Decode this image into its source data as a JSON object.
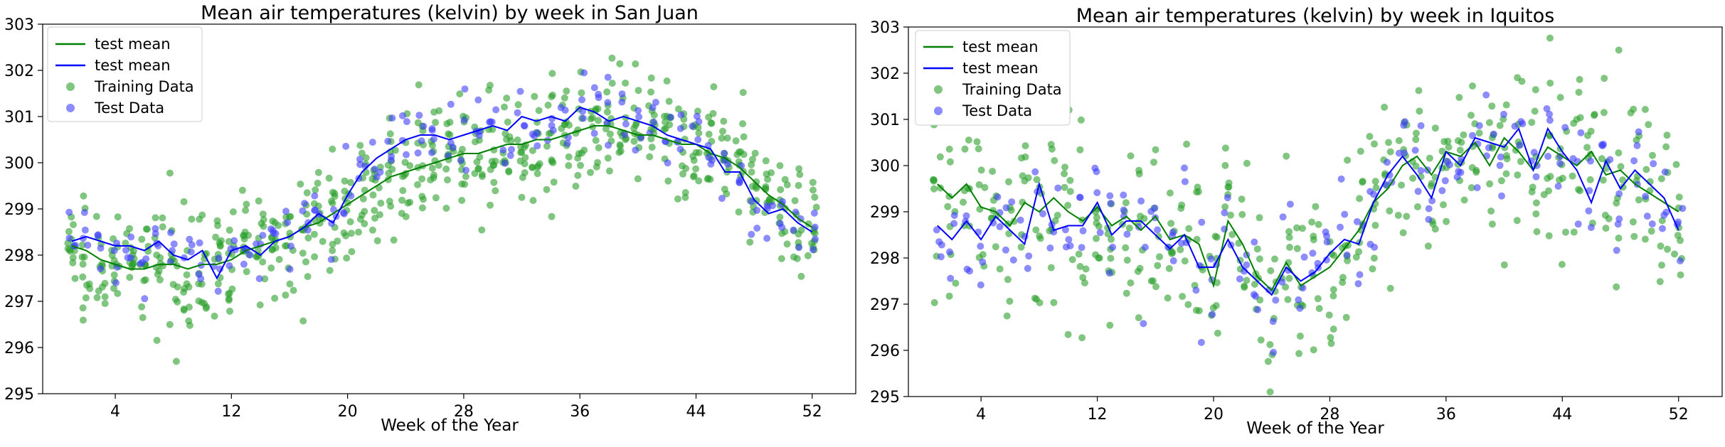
{
  "colors": {
    "train_line": "#008000",
    "test_line": "#0000ff",
    "train_points": "#2ca02c",
    "test_points": "#3f3fff"
  },
  "chart_data": [
    {
      "type": "scatter",
      "title": "Mean air temperatures (kelvin) by week in San Juan",
      "xlabel": "Week of the Year",
      "ylabel": "",
      "xlim": [
        -1,
        55
      ],
      "ylim": [
        295,
        303
      ],
      "xticks": [
        4,
        12,
        20,
        28,
        36,
        44,
        52
      ],
      "yticks": [
        295,
        296,
        297,
        298,
        299,
        300,
        301,
        302,
        303
      ],
      "legend_position": "top-left",
      "grid": false,
      "legend": [
        "test mean",
        "test mean",
        "Training Data",
        "Test Data"
      ],
      "weeks": [
        1,
        2,
        3,
        4,
        5,
        6,
        7,
        8,
        9,
        10,
        11,
        12,
        13,
        14,
        15,
        16,
        17,
        18,
        19,
        20,
        21,
        22,
        23,
        24,
        25,
        26,
        27,
        28,
        29,
        30,
        31,
        32,
        33,
        34,
        35,
        36,
        37,
        38,
        39,
        40,
        41,
        42,
        43,
        44,
        45,
        46,
        47,
        48,
        49,
        50,
        51,
        52
      ],
      "train_mean": [
        298.2,
        298.1,
        297.9,
        297.8,
        297.7,
        297.7,
        297.8,
        297.8,
        297.7,
        297.8,
        297.8,
        297.9,
        298.1,
        298.2,
        298.3,
        298.4,
        298.6,
        298.7,
        298.9,
        299.1,
        299.3,
        299.5,
        299.7,
        299.8,
        299.9,
        300.0,
        300.1,
        300.2,
        300.2,
        300.3,
        300.4,
        300.4,
        300.5,
        300.5,
        300.6,
        300.7,
        300.8,
        300.8,
        300.7,
        300.6,
        300.6,
        300.5,
        300.4,
        300.4,
        300.2,
        300.1,
        299.9,
        299.6,
        299.3,
        299.1,
        298.8,
        298.6
      ],
      "test_mean": [
        298.3,
        298.4,
        298.3,
        298.2,
        298.2,
        298.1,
        298.3,
        298.0,
        297.9,
        298.1,
        297.5,
        298.1,
        298.2,
        298.0,
        298.3,
        298.4,
        298.6,
        298.9,
        298.7,
        299.3,
        299.8,
        300.1,
        300.3,
        300.5,
        300.6,
        300.6,
        300.5,
        300.6,
        300.7,
        300.8,
        300.7,
        301.0,
        300.9,
        301.0,
        300.9,
        301.2,
        301.1,
        300.9,
        301.0,
        300.9,
        300.8,
        300.6,
        300.5,
        300.4,
        300.3,
        299.8,
        299.8,
        299.2,
        298.9,
        299.0,
        298.7,
        298.5
      ],
      "train_spread": 0.75,
      "train_per_week": 13,
      "test_spread": 0.45,
      "test_per_week": 4
    },
    {
      "type": "scatter",
      "title": "Mean air temperatures (kelvin) by week in Iquitos",
      "xlabel": "Week of the Year",
      "ylabel": "",
      "xlim": [
        -1,
        55
      ],
      "ylim": [
        295,
        303
      ],
      "xticks": [
        4,
        12,
        20,
        28,
        36,
        44,
        52
      ],
      "yticks": [
        295,
        296,
        297,
        298,
        299,
        300,
        301,
        302,
        303
      ],
      "legend_position": "top-left",
      "grid": false,
      "legend": [
        "test mean",
        "test mean",
        "Training Data",
        "Test Data"
      ],
      "weeks": [
        1,
        2,
        3,
        4,
        5,
        6,
        7,
        8,
        9,
        10,
        11,
        12,
        13,
        14,
        15,
        16,
        17,
        18,
        19,
        20,
        21,
        22,
        23,
        24,
        25,
        26,
        27,
        28,
        29,
        30,
        31,
        32,
        33,
        34,
        35,
        36,
        37,
        38,
        39,
        40,
        41,
        42,
        43,
        44,
        45,
        46,
        47,
        48,
        49,
        50,
        51,
        52
      ],
      "train_mean": [
        299.6,
        299.3,
        299.6,
        299.1,
        299.0,
        298.7,
        299.2,
        299.0,
        299.3,
        299.0,
        298.8,
        299.1,
        298.7,
        298.9,
        298.6,
        298.9,
        298.4,
        298.5,
        298.3,
        297.4,
        298.8,
        298.3,
        297.6,
        297.3,
        297.9,
        297.4,
        297.6,
        297.8,
        298.2,
        298.6,
        299.2,
        299.5,
        300.0,
        300.2,
        299.8,
        300.3,
        300.2,
        300.5,
        300.0,
        300.6,
        300.3,
        299.9,
        300.4,
        300.2,
        300.0,
        300.3,
        299.8,
        299.9,
        299.6,
        299.4,
        299.2,
        299.0
      ],
      "test_mean": [
        298.7,
        298.4,
        298.8,
        298.4,
        298.9,
        298.6,
        298.3,
        299.6,
        298.6,
        298.7,
        298.7,
        299.2,
        298.5,
        298.8,
        298.8,
        298.5,
        298.2,
        298.5,
        297.8,
        297.8,
        298.4,
        297.8,
        297.5,
        297.2,
        297.8,
        297.5,
        297.7,
        298.1,
        298.4,
        298.3,
        299.2,
        299.8,
        300.2,
        299.8,
        299.3,
        300.3,
        300.0,
        300.6,
        300.5,
        300.4,
        300.8,
        299.9,
        300.8,
        300.3,
        299.9,
        299.2,
        300.1,
        299.5,
        299.9,
        299.6,
        299.3,
        298.6
      ],
      "train_spread": 1.2,
      "train_per_week": 9,
      "test_spread": 0.7,
      "test_per_week": 4
    }
  ]
}
